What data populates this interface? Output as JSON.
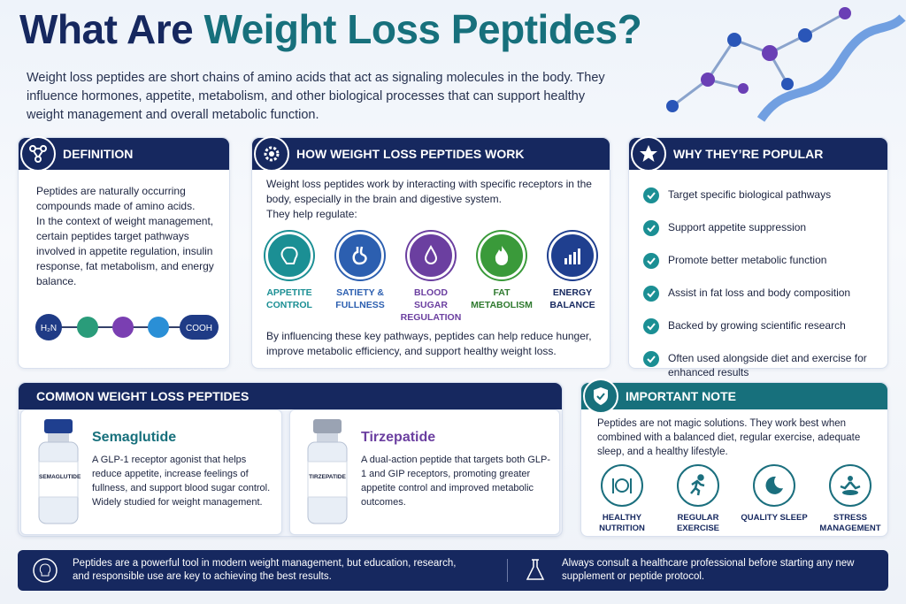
{
  "title": {
    "lead": "What Are",
    "accent": "Weight Loss Peptides?"
  },
  "intro": "Weight loss peptides are short chains of amino acids that act as signaling molecules in the body. They influence hormones, appetite, metabolism, and other biological processes that can support healthy weight management and overall metabolic function.",
  "definition": {
    "heading": "DEFINITION",
    "paragraphs": [
      "Peptides are naturally occurring compounds made of amino acids.",
      "In the context of weight management, certain peptides target pathways involved in appetite regulation, insulin response, fat metabolism, and energy balance."
    ],
    "molecule": {
      "left": "H₂N",
      "right": "COOH"
    }
  },
  "how": {
    "heading": "HOW WEIGHT LOSS PEPTIDES WORK",
    "intro": "Weight loss peptides work by interacting with specific receptors in the body, especially in the brain and digestive system.",
    "lead": "They help regulate:",
    "pathways": [
      "APPETITE CONTROL",
      "SATIETY & FULLNESS",
      "BLOOD SUGAR REGULATION",
      "FAT METABOLISM",
      "ENERGY BALANCE"
    ],
    "outro": "By influencing these key pathways, peptides can help reduce hunger, improve metabolic efficiency, and support healthy weight loss."
  },
  "popular": {
    "heading": "WHY THEY’RE POPULAR",
    "items": [
      "Target specific biological pathways",
      "Support appetite suppression",
      "Promote better metabolic function",
      "Assist in fat loss and body composition",
      "Backed by growing scientific research",
      "Often used alongside diet and exercise for enhanced results"
    ]
  },
  "common": {
    "heading": "COMMON WEIGHT LOSS PEPTIDES",
    "peptides": [
      {
        "name": "Semaglutide",
        "vial_label": "SEMAGLUTIDE",
        "description": "A GLP-1 receptor agonist that helps reduce appetite, increase feelings of fullness, and support blood sugar control. Widely studied for weight management."
      },
      {
        "name": "Tirzepatide",
        "vial_label": "TIRZEPATIDE",
        "description": "A dual-action peptide that targets both GLP-1 and GIP receptors, promoting greater appetite control and improved metabolic outcomes."
      }
    ]
  },
  "note": {
    "heading": "IMPORTANT NOTE",
    "text": "Peptides are not magic solutions. They work best when combined with a balanced diet, regular exercise, adequate sleep, and a healthy lifestyle.",
    "tips": [
      "HEALTHY NUTRITION",
      "REGULAR EXERCISE",
      "QUALITY SLEEP",
      "STRESS MANAGEMENT"
    ]
  },
  "footer": {
    "left": "Peptides are a powerful tool in modern weight management, but education, research, and responsible use are key to achieving the best results.",
    "right": "Always consult a healthcare professional before starting any new supplement or peptide protocol."
  }
}
